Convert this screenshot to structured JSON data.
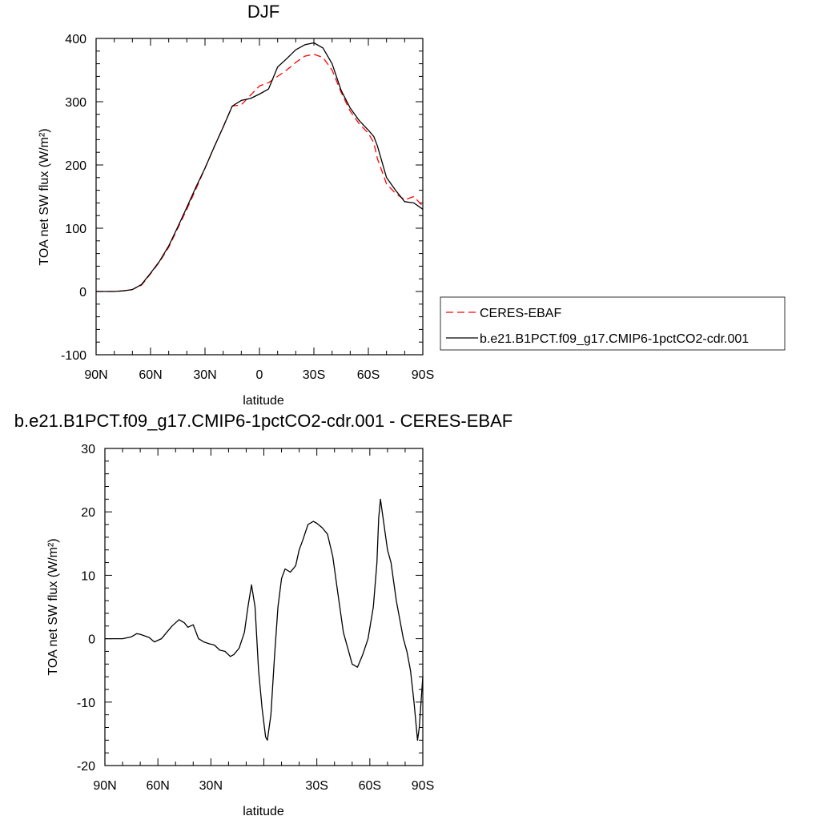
{
  "chart_data": [
    {
      "type": "line",
      "title": "DJF",
      "xlabel": "latitude",
      "ylabel": "TOA net SW flux (W/m²)",
      "xlim": [
        -90,
        90
      ],
      "ylim": [
        -100,
        400
      ],
      "xtick_values": [
        -90,
        -60,
        -30,
        0,
        30,
        60,
        90
      ],
      "xtick_labels": [
        "90N",
        "60N",
        "30N",
        "0",
        "30S",
        "60S",
        "90S"
      ],
      "ytick_values": [
        -100,
        0,
        100,
        200,
        300,
        400
      ],
      "ytick_labels": [
        "-100",
        "0",
        "100",
        "200",
        "300",
        "400"
      ],
      "grid": false,
      "legend_position": "right",
      "series": [
        {
          "name": "CERES-EBAF",
          "color": "#ff0000",
          "dash": true,
          "x": [
            -90,
            -80,
            -75,
            -70,
            -65,
            -60,
            -55,
            -50,
            -45,
            -40,
            -35,
            -30,
            -25,
            -20,
            -15,
            -10,
            -5,
            0,
            5,
            10,
            15,
            20,
            25,
            30,
            35,
            40,
            45,
            50,
            55,
            60,
            63,
            65,
            70,
            75,
            80,
            85,
            90
          ],
          "y": [
            0,
            0,
            1,
            3,
            10,
            28,
            47,
            70,
            100,
            130,
            162,
            195,
            228,
            260,
            293,
            295,
            310,
            325,
            330,
            340,
            350,
            362,
            372,
            375,
            370,
            350,
            315,
            285,
            265,
            250,
            235,
            210,
            170,
            155,
            145,
            150,
            135
          ]
        },
        {
          "name": "b.e21.B1PCT.f09_g17.CMIP6-1pctCO2-cdr.001",
          "color": "#000000",
          "dash": false,
          "x": [
            -90,
            -80,
            -75,
            -70,
            -65,
            -60,
            -55,
            -50,
            -45,
            -40,
            -35,
            -30,
            -25,
            -20,
            -15,
            -10,
            -5,
            0,
            5,
            10,
            15,
            20,
            25,
            30,
            35,
            40,
            45,
            50,
            55,
            60,
            63,
            65,
            70,
            75,
            80,
            85,
            90
          ],
          "y": [
            0,
            0,
            1,
            3,
            11,
            29,
            48,
            72,
            102,
            133,
            165,
            195,
            228,
            260,
            293,
            302,
            305,
            312,
            320,
            355,
            368,
            382,
            390,
            393,
            385,
            360,
            318,
            290,
            270,
            255,
            245,
            230,
            180,
            160,
            142,
            140,
            130
          ]
        }
      ]
    },
    {
      "type": "line",
      "title": "b.e21.B1PCT.f09_g17.CMIP6-1pctCO2-cdr.001 - CERES-EBAF",
      "xlabel": "latitude",
      "ylabel": "TOA net SW flux (W/m²)",
      "xlim": [
        -90,
        90
      ],
      "ylim": [
        -20,
        30
      ],
      "xtick_values": [
        -90,
        -60,
        -30,
        30,
        60,
        90
      ],
      "xtick_labels": [
        "90N",
        "60N",
        "30N",
        "30S",
        "60S",
        "90S"
      ],
      "ytick_values": [
        -20,
        -10,
        0,
        10,
        20,
        30
      ],
      "ytick_labels": [
        "-20",
        "-10",
        "0",
        "10",
        "20",
        "30"
      ],
      "grid": false,
      "series": [
        {
          "color": "#000000",
          "x": [
            -90,
            -80,
            -75,
            -72,
            -70,
            -65,
            -62,
            -58,
            -55,
            -52,
            -48,
            -45,
            -43,
            -40,
            -37,
            -34,
            -31,
            -28,
            -25,
            -22,
            -19,
            -17,
            -14,
            -11,
            -9,
            -7,
            -5,
            -3,
            -1,
            1,
            2,
            4,
            6,
            8,
            10,
            12,
            15,
            18,
            20,
            22,
            25,
            28,
            30,
            33,
            36,
            39,
            42,
            45,
            48,
            50,
            53,
            56,
            59,
            62,
            64,
            65,
            66,
            68,
            70,
            72,
            75,
            77,
            79,
            81,
            83,
            85,
            87,
            88,
            90
          ],
          "y": [
            0,
            0,
            0.3,
            0.8,
            0.7,
            0.2,
            -0.5,
            0,
            1,
            2,
            3,
            2.5,
            1.8,
            2.2,
            0,
            -0.5,
            -0.8,
            -1,
            -1.8,
            -2,
            -2.8,
            -2.5,
            -1.5,
            1,
            5,
            8.5,
            5,
            -5,
            -11,
            -15.5,
            -16,
            -12,
            -3,
            5,
            9.5,
            11,
            10.5,
            11.5,
            14,
            15.5,
            18,
            18.5,
            18.2,
            17.5,
            16.5,
            13,
            7,
            1,
            -2,
            -4,
            -4.5,
            -2.5,
            0,
            5,
            12,
            19,
            22,
            18,
            14,
            12,
            6,
            3,
            0,
            -2,
            -5,
            -10,
            -16,
            -14,
            -6
          ]
        }
      ]
    }
  ]
}
